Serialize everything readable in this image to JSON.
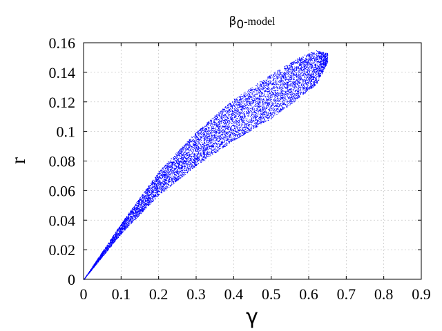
{
  "chart_data": {
    "type": "scatter",
    "title": {
      "symbol": "β",
      "subscript": "0",
      "suffix": "-model"
    },
    "xlabel": "γ",
    "ylabel": "r",
    "xlim": [
      0,
      0.9
    ],
    "ylim": [
      0,
      0.16
    ],
    "xticks": [
      "0",
      "0.1",
      "0.2",
      "0.3",
      "0.4",
      "0.5",
      "0.6",
      "0.7",
      "0.8",
      "0.9"
    ],
    "yticks": [
      "0",
      "0.02",
      "0.04",
      "0.06",
      "0.08",
      "0.1",
      "0.12",
      "0.14",
      "0.16"
    ],
    "grid": true,
    "series": [
      {
        "color": "#0000ff",
        "marker": "dot",
        "region": {
          "x_range": [
            0,
            0.65
          ],
          "upper_edge": [
            [
              0,
              0
            ],
            [
              0.1,
              0.038
            ],
            [
              0.2,
              0.073
            ],
            [
              0.3,
              0.1
            ],
            [
              0.4,
              0.122
            ],
            [
              0.5,
              0.139
            ],
            [
              0.58,
              0.151
            ],
            [
              0.62,
              0.155
            ],
            [
              0.65,
              0.153
            ]
          ],
          "lower_edge": [
            [
              0,
              0
            ],
            [
              0.1,
              0.031
            ],
            [
              0.2,
              0.057
            ],
            [
              0.3,
              0.077
            ],
            [
              0.4,
              0.094
            ],
            [
              0.5,
              0.109
            ],
            [
              0.57,
              0.122
            ],
            [
              0.62,
              0.132
            ],
            [
              0.65,
              0.147
            ]
          ]
        }
      }
    ]
  }
}
